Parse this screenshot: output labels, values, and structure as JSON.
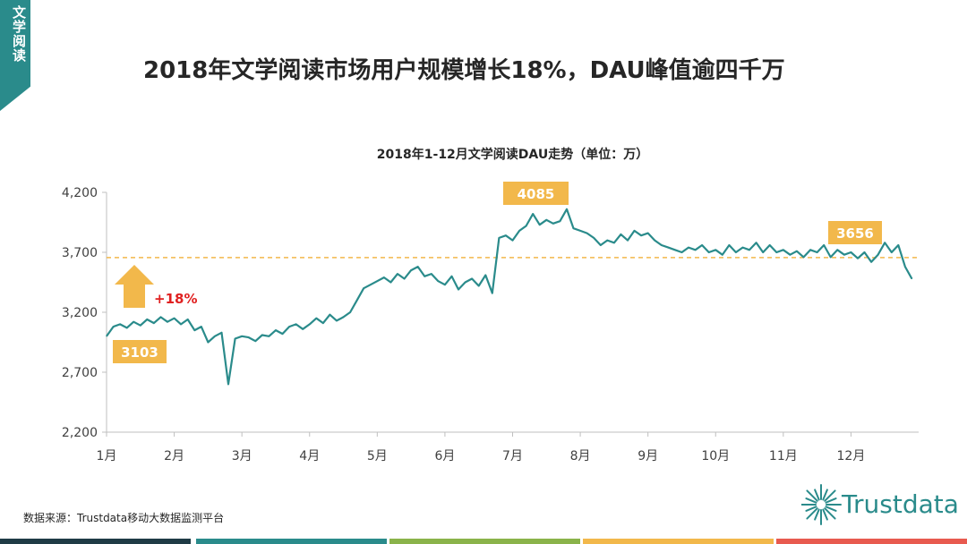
{
  "header": {
    "tag_label": "文学阅读",
    "title": "2018年文学阅读市场用户规模增长18%，DAU峰值逾四千万"
  },
  "chart_data": {
    "type": "line",
    "title": "2018年1-12月文学阅读DAU走势（单位：万）",
    "xlabel": "",
    "ylabel": "",
    "x_categories": [
      "1月",
      "2月",
      "3月",
      "4月",
      "5月",
      "6月",
      "7月",
      "8月",
      "9月",
      "10月",
      "11月",
      "12月"
    ],
    "ylim": [
      2200,
      4200
    ],
    "yticks": [
      2200,
      2700,
      3200,
      3700,
      4200
    ],
    "ytick_labels": [
      "2,200",
      "2,700",
      "3,200",
      "3,700",
      "4,200"
    ],
    "reference_line": {
      "value": 3656,
      "style": "dashed",
      "color": "#f2b84b"
    },
    "series": [
      {
        "color": "#2a8b8b",
        "points": [
          [
            0.0,
            3000
          ],
          [
            0.1,
            3080
          ],
          [
            0.2,
            3100
          ],
          [
            0.3,
            3070
          ],
          [
            0.4,
            3120
          ],
          [
            0.5,
            3090
          ],
          [
            0.6,
            3140
          ],
          [
            0.7,
            3110
          ],
          [
            0.8,
            3160
          ],
          [
            0.9,
            3120
          ],
          [
            1.0,
            3150
          ],
          [
            1.1,
            3100
          ],
          [
            1.2,
            3140
          ],
          [
            1.3,
            3050
          ],
          [
            1.4,
            3080
          ],
          [
            1.5,
            2950
          ],
          [
            1.6,
            3000
          ],
          [
            1.7,
            3030
          ],
          [
            1.8,
            2600
          ],
          [
            1.9,
            2980
          ],
          [
            2.0,
            3000
          ],
          [
            2.1,
            2990
          ],
          [
            2.2,
            2960
          ],
          [
            2.3,
            3010
          ],
          [
            2.4,
            3000
          ],
          [
            2.5,
            3050
          ],
          [
            2.6,
            3020
          ],
          [
            2.7,
            3080
          ],
          [
            2.8,
            3100
          ],
          [
            2.9,
            3060
          ],
          [
            3.0,
            3100
          ],
          [
            3.1,
            3150
          ],
          [
            3.2,
            3110
          ],
          [
            3.3,
            3180
          ],
          [
            3.4,
            3130
          ],
          [
            3.5,
            3160
          ],
          [
            3.6,
            3200
          ],
          [
            3.7,
            3300
          ],
          [
            3.8,
            3400
          ],
          [
            3.9,
            3430
          ],
          [
            4.0,
            3460
          ],
          [
            4.1,
            3490
          ],
          [
            4.2,
            3450
          ],
          [
            4.3,
            3520
          ],
          [
            4.4,
            3480
          ],
          [
            4.5,
            3550
          ],
          [
            4.6,
            3580
          ],
          [
            4.7,
            3500
          ],
          [
            4.8,
            3520
          ],
          [
            4.9,
            3460
          ],
          [
            5.0,
            3430
          ],
          [
            5.1,
            3500
          ],
          [
            5.2,
            3390
          ],
          [
            5.3,
            3450
          ],
          [
            5.4,
            3480
          ],
          [
            5.5,
            3420
          ],
          [
            5.6,
            3510
          ],
          [
            5.7,
            3360
          ],
          [
            5.8,
            3820
          ],
          [
            5.9,
            3840
          ],
          [
            6.0,
            3800
          ],
          [
            6.1,
            3880
          ],
          [
            6.2,
            3920
          ],
          [
            6.3,
            4020
          ],
          [
            6.4,
            3930
          ],
          [
            6.5,
            3970
          ],
          [
            6.6,
            3940
          ],
          [
            6.7,
            3960
          ],
          [
            6.8,
            4060
          ],
          [
            6.9,
            3900
          ],
          [
            7.0,
            3880
          ],
          [
            7.1,
            3860
          ],
          [
            7.2,
            3820
          ],
          [
            7.3,
            3760
          ],
          [
            7.4,
            3800
          ],
          [
            7.5,
            3780
          ],
          [
            7.6,
            3850
          ],
          [
            7.7,
            3800
          ],
          [
            7.8,
            3880
          ],
          [
            7.9,
            3840
          ],
          [
            8.0,
            3860
          ],
          [
            8.1,
            3800
          ],
          [
            8.2,
            3760
          ],
          [
            8.3,
            3740
          ],
          [
            8.4,
            3720
          ],
          [
            8.5,
            3700
          ],
          [
            8.6,
            3740
          ],
          [
            8.7,
            3720
          ],
          [
            8.8,
            3760
          ],
          [
            8.9,
            3700
          ],
          [
            9.0,
            3720
          ],
          [
            9.1,
            3680
          ],
          [
            9.2,
            3760
          ],
          [
            9.3,
            3700
          ],
          [
            9.4,
            3740
          ],
          [
            9.5,
            3720
          ],
          [
            9.6,
            3780
          ],
          [
            9.7,
            3700
          ],
          [
            9.8,
            3760
          ],
          [
            9.9,
            3700
          ],
          [
            10.0,
            3720
          ],
          [
            10.1,
            3680
          ],
          [
            10.2,
            3710
          ],
          [
            10.3,
            3660
          ],
          [
            10.4,
            3720
          ],
          [
            10.5,
            3700
          ],
          [
            10.6,
            3760
          ],
          [
            10.7,
            3660
          ],
          [
            10.8,
            3720
          ],
          [
            10.9,
            3680
          ],
          [
            11.0,
            3700
          ],
          [
            11.1,
            3650
          ],
          [
            11.2,
            3700
          ],
          [
            11.3,
            3620
          ],
          [
            11.4,
            3680
          ],
          [
            11.5,
            3780
          ],
          [
            11.6,
            3700
          ],
          [
            11.7,
            3760
          ],
          [
            11.8,
            3580
          ],
          [
            11.9,
            3480
          ]
        ]
      }
    ],
    "annotations": [
      {
        "label": "3103",
        "kind": "start_value"
      },
      {
        "label": "4085",
        "kind": "peak_value"
      },
      {
        "label": "3656",
        "kind": "end_value"
      },
      {
        "label": "+18%",
        "kind": "growth",
        "color": "#e02020"
      }
    ]
  },
  "footer": {
    "source": "数据来源：Trustdata移动大数据监测平台",
    "logo_text": "Trustdata"
  },
  "colors": {
    "accent_teal": "#2a8b8b",
    "label_orange": "#f2b84b",
    "growth_red": "#e02020",
    "bar_segments": [
      "#1f3b45",
      "#2a8b8b",
      "#8ab34a",
      "#f2b84b",
      "#e85a4f"
    ]
  }
}
